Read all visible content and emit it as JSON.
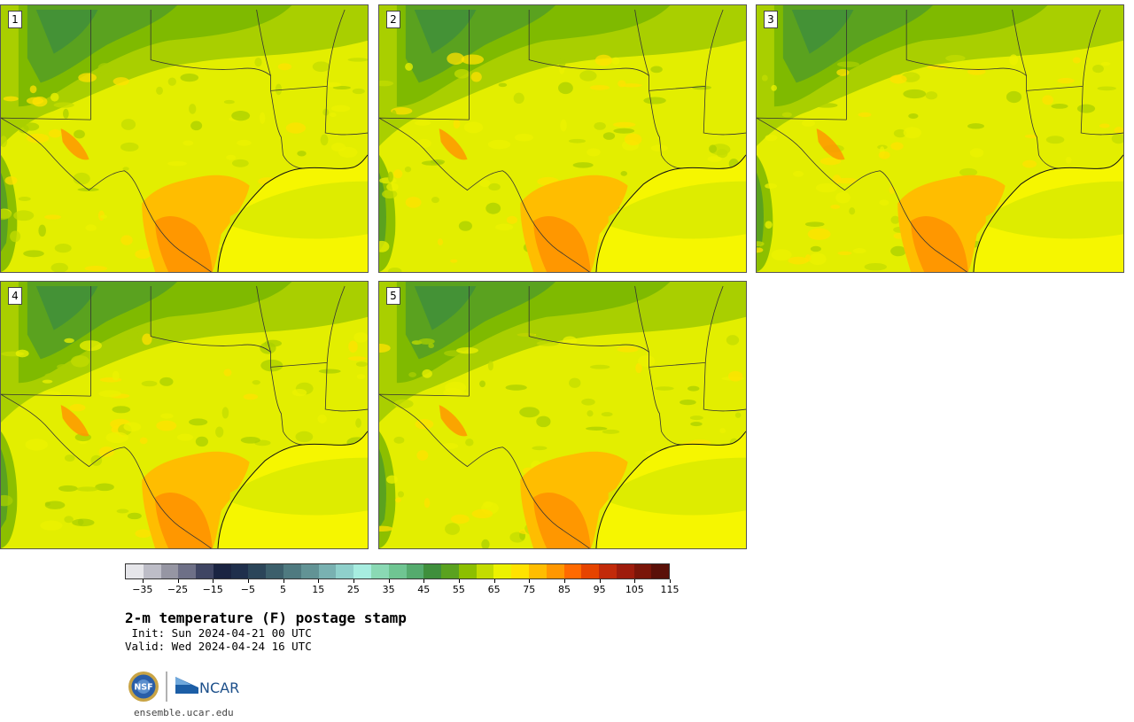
{
  "panels": [
    {
      "label": "1"
    },
    {
      "label": "2"
    },
    {
      "label": "3"
    },
    {
      "label": "4"
    },
    {
      "label": "5"
    }
  ],
  "colorbar": {
    "colors": [
      "#e6e6ea",
      "#bdbdc7",
      "#9696a3",
      "#6e7087",
      "#3f4563",
      "#1a2442",
      "#1f2f4c",
      "#2b4559",
      "#3c5f6b",
      "#4f7a80",
      "#629395",
      "#79b1b1",
      "#8fd0cb",
      "#a7ede0",
      "#8ad9b4",
      "#6fc592",
      "#55ab6e",
      "#3f8f3c",
      "#5aa21f",
      "#8cbf00",
      "#c3dc00",
      "#ecf200",
      "#ffe200",
      "#ffbd00",
      "#ff9700",
      "#ff6a00",
      "#e64400",
      "#c22a0a",
      "#9e1c0c",
      "#7a1509",
      "#5a1008"
    ],
    "tick_labels": [
      "−35",
      "−25",
      "−15",
      "−5",
      "5",
      "15",
      "25",
      "35",
      "45",
      "55",
      "65",
      "75",
      "85",
      "95",
      "105",
      "115"
    ]
  },
  "title": "2-m temperature (F) postage stamp",
  "init_line": " Init: Sun 2024-04-21 00 UTC",
  "valid_line": "Valid: Wed 2024-04-24 16 UTC",
  "logos": [
    "NSF",
    "NCAR"
  ],
  "url": "ensemble.ucar.edu"
}
